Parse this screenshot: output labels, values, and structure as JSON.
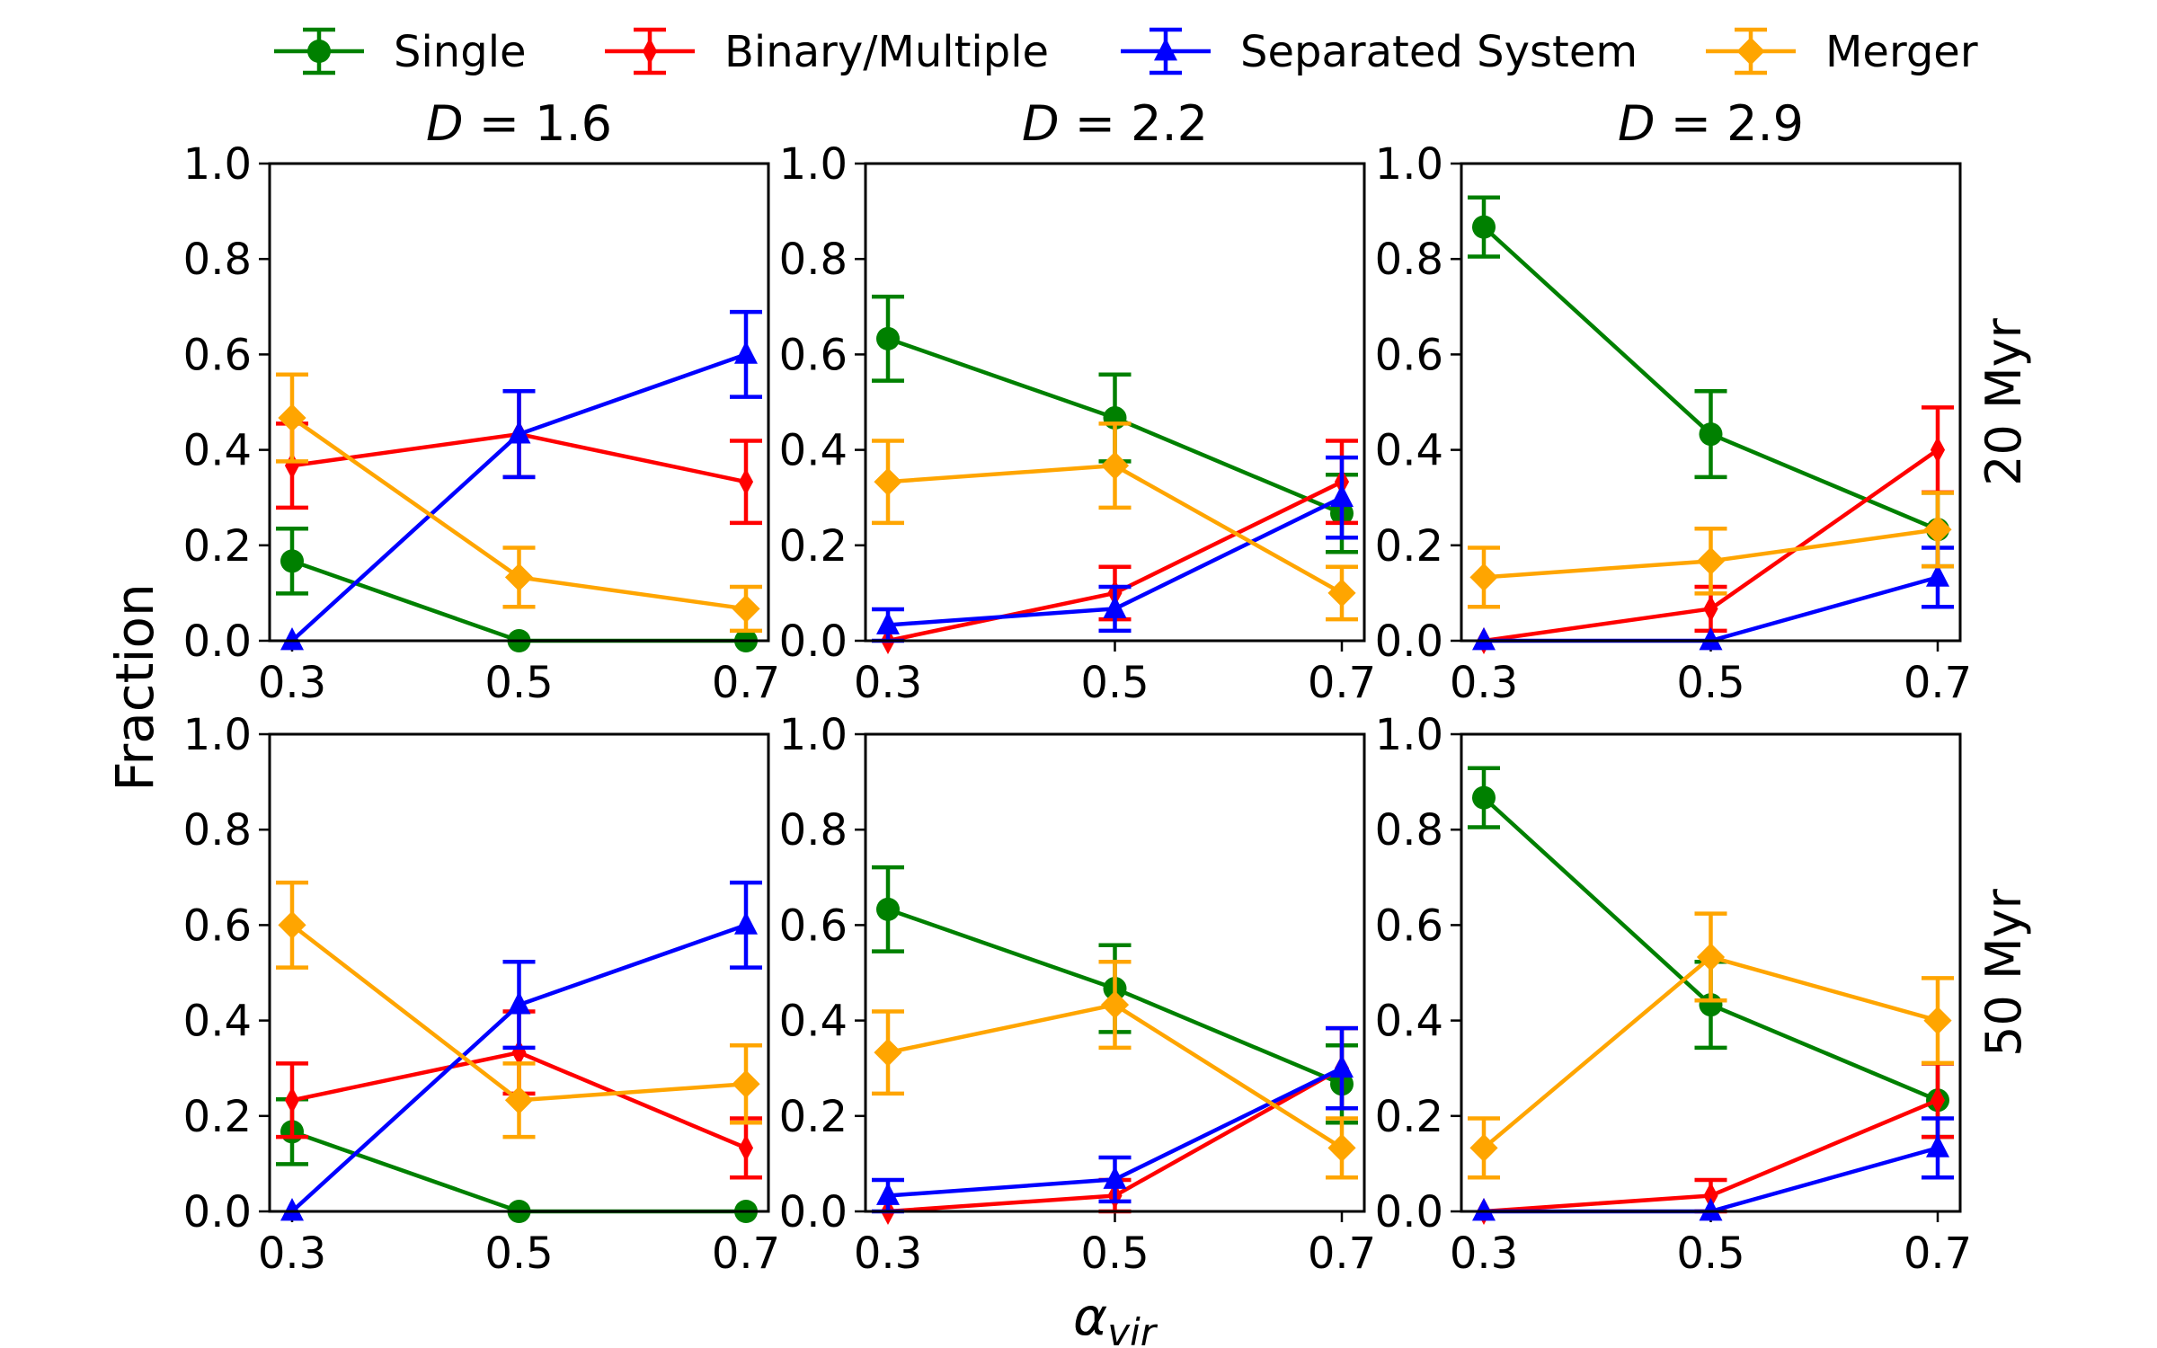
{
  "chart_data": {
    "type": "line",
    "layout": "2x3 grid of panels with error bars",
    "xlabel": "α",
    "xlabel_subscript": "vir",
    "ylabel": "Fraction",
    "x": [
      0.3,
      0.5,
      0.7
    ],
    "x_tick_labels": [
      "0.3",
      "0.5",
      "0.7"
    ],
    "ylim": [
      0.0,
      1.0
    ],
    "y_tick_labels": [
      "0.0",
      "0.2",
      "0.4",
      "0.6",
      "0.8",
      "1.0"
    ],
    "grid": false,
    "legend_position": "top, above panels",
    "series_styles": [
      {
        "name": "Single",
        "color": "#008000",
        "marker": "circle"
      },
      {
        "name": "Binary/Multiple",
        "color": "#ff0000",
        "marker": "thin-diamond"
      },
      {
        "name": "Separated System",
        "color": "#0000ff",
        "marker": "triangle"
      },
      {
        "name": "Merger",
        "color": "#ffa500",
        "marker": "diamond"
      }
    ],
    "column_titles": [
      {
        "var": "D",
        "text": " = 1.6"
      },
      {
        "var": "D",
        "text": " = 2.2"
      },
      {
        "var": "D",
        "text": " = 2.9"
      }
    ],
    "row_labels": [
      "20 Myr",
      "50 Myr"
    ],
    "panels": [
      {
        "row": 0,
        "col": 0,
        "series": [
          {
            "name": "Single",
            "values": [
              0.167,
              0.0,
              0.0
            ],
            "errors": [
              0.068,
              0,
              0
            ]
          },
          {
            "name": "Binary/Multiple",
            "values": [
              0.367,
              0.433,
              0.333
            ],
            "errors": [
              0.088,
              0.09,
              0.086
            ]
          },
          {
            "name": "Separated System",
            "values": [
              0.0,
              0.433,
              0.6
            ],
            "errors": [
              0,
              0.09,
              0.089
            ]
          },
          {
            "name": "Merger",
            "values": [
              0.467,
              0.133,
              0.067
            ],
            "errors": [
              0.091,
              0.062,
              0.046
            ]
          }
        ]
      },
      {
        "row": 0,
        "col": 1,
        "series": [
          {
            "name": "Single",
            "values": [
              0.633,
              0.467,
              0.267
            ],
            "errors": [
              0.088,
              0.091,
              0.081
            ]
          },
          {
            "name": "Binary/Multiple",
            "values": [
              0.0,
              0.1,
              0.333
            ],
            "errors": [
              0,
              0.055,
              0.086
            ]
          },
          {
            "name": "Separated System",
            "values": [
              0.033,
              0.067,
              0.3
            ],
            "errors": [
              0.033,
              0.046,
              0.084
            ]
          },
          {
            "name": "Merger",
            "values": [
              0.333,
              0.367,
              0.1
            ],
            "errors": [
              0.086,
              0.088,
              0.055
            ]
          }
        ]
      },
      {
        "row": 0,
        "col": 2,
        "series": [
          {
            "name": "Single",
            "values": [
              0.867,
              0.433,
              0.233
            ],
            "errors": [
              0.062,
              0.09,
              0.077
            ]
          },
          {
            "name": "Binary/Multiple",
            "values": [
              0.0,
              0.067,
              0.4
            ],
            "errors": [
              0,
              0.046,
              0.089
            ]
          },
          {
            "name": "Separated System",
            "values": [
              0.0,
              0.0,
              0.133
            ],
            "errors": [
              0,
              0,
              0.062
            ]
          },
          {
            "name": "Merger",
            "values": [
              0.133,
              0.167,
              0.233
            ],
            "errors": [
              0.062,
              0.068,
              0.077
            ]
          }
        ]
      },
      {
        "row": 1,
        "col": 0,
        "series": [
          {
            "name": "Single",
            "values": [
              0.167,
              0.0,
              0.0
            ],
            "errors": [
              0.068,
              0,
              0
            ]
          },
          {
            "name": "Binary/Multiple",
            "values": [
              0.233,
              0.333,
              0.133
            ],
            "errors": [
              0.077,
              0.086,
              0.062
            ]
          },
          {
            "name": "Separated System",
            "values": [
              0.0,
              0.433,
              0.6
            ],
            "errors": [
              0,
              0.09,
              0.089
            ]
          },
          {
            "name": "Merger",
            "values": [
              0.6,
              0.233,
              0.267
            ],
            "errors": [
              0.089,
              0.077,
              0.081
            ]
          }
        ]
      },
      {
        "row": 1,
        "col": 1,
        "series": [
          {
            "name": "Single",
            "values": [
              0.633,
              0.467,
              0.267
            ],
            "errors": [
              0.088,
              0.091,
              0.081
            ]
          },
          {
            "name": "Binary/Multiple",
            "values": [
              0.0,
              0.033,
              0.3
            ],
            "errors": [
              0,
              0.033,
              0.084
            ]
          },
          {
            "name": "Separated System",
            "values": [
              0.033,
              0.067,
              0.3
            ],
            "errors": [
              0.033,
              0.046,
              0.084
            ]
          },
          {
            "name": "Merger",
            "values": [
              0.333,
              0.433,
              0.133
            ],
            "errors": [
              0.086,
              0.09,
              0.062
            ]
          }
        ]
      },
      {
        "row": 1,
        "col": 2,
        "series": [
          {
            "name": "Single",
            "values": [
              0.867,
              0.433,
              0.233
            ],
            "errors": [
              0.062,
              0.09,
              0.077
            ]
          },
          {
            "name": "Binary/Multiple",
            "values": [
              0.0,
              0.033,
              0.233
            ],
            "errors": [
              0,
              0.033,
              0.077
            ]
          },
          {
            "name": "Separated System",
            "values": [
              0.0,
              0.0,
              0.133
            ],
            "errors": [
              0,
              0,
              0.062
            ]
          },
          {
            "name": "Merger",
            "values": [
              0.133,
              0.533,
              0.4
            ],
            "errors": [
              0.062,
              0.091,
              0.089
            ]
          }
        ]
      }
    ]
  }
}
